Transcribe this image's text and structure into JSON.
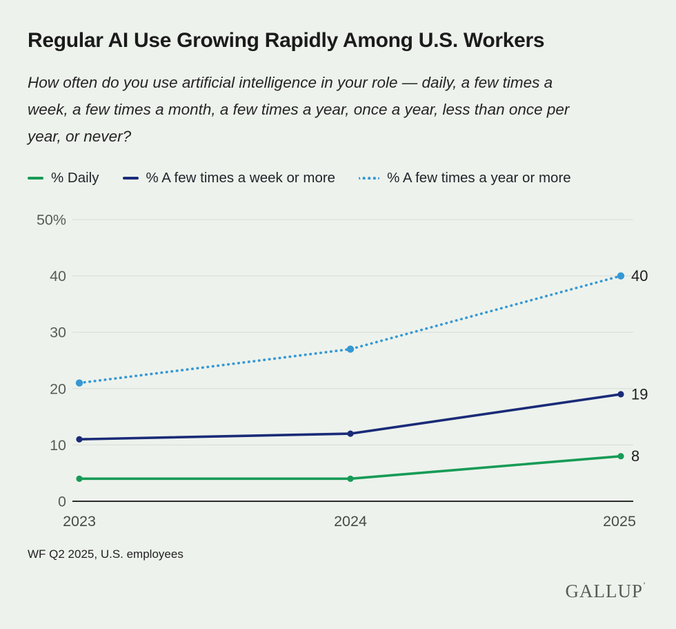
{
  "page": {
    "title": "Regular AI Use Growing Rapidly Among U.S. Workers",
    "subtitle_lines": [
      "How often do you use artificial intelligence in your role — daily, a few times a",
      "week, a few times a month, a few times a year, once a year, less than once per",
      "year, or never?"
    ],
    "footnote": "WF Q2 2025, U.S. employees",
    "brand": "GALLUP",
    "brand_mark": "’"
  },
  "colors": {
    "background": "#edf2ec",
    "daily": "#169b56",
    "weekly": "#1a2b78",
    "yearly": "#3598d4",
    "grid": "#d8dcd6",
    "axis": "#2c2c2c",
    "y_tick_text": "#575c58",
    "x_tick_text": "#464b47",
    "end_label_text": "#1d1d1d"
  },
  "chart_data": {
    "type": "line",
    "categories": [
      "2023",
      "2024",
      "2025"
    ],
    "series": [
      {
        "name": "% Daily",
        "values": [
          4,
          4,
          8
        ],
        "color_key": "daily",
        "style": "solid",
        "end_label": "8"
      },
      {
        "name": "% A few times a week or more",
        "values": [
          11,
          12,
          19
        ],
        "color_key": "weekly",
        "style": "solid",
        "end_label": "19"
      },
      {
        "name": "% A few times a year or more",
        "values": [
          21,
          27,
          40
        ],
        "color_key": "yearly",
        "style": "dotted",
        "end_label": "40"
      }
    ],
    "ylim": [
      0,
      50
    ],
    "yticks": [
      0,
      10,
      20,
      30,
      40,
      50
    ],
    "ytick_labels": [
      "0",
      "10",
      "20",
      "30",
      "40",
      "50%"
    ],
    "grid": true,
    "legend_position": "top"
  }
}
